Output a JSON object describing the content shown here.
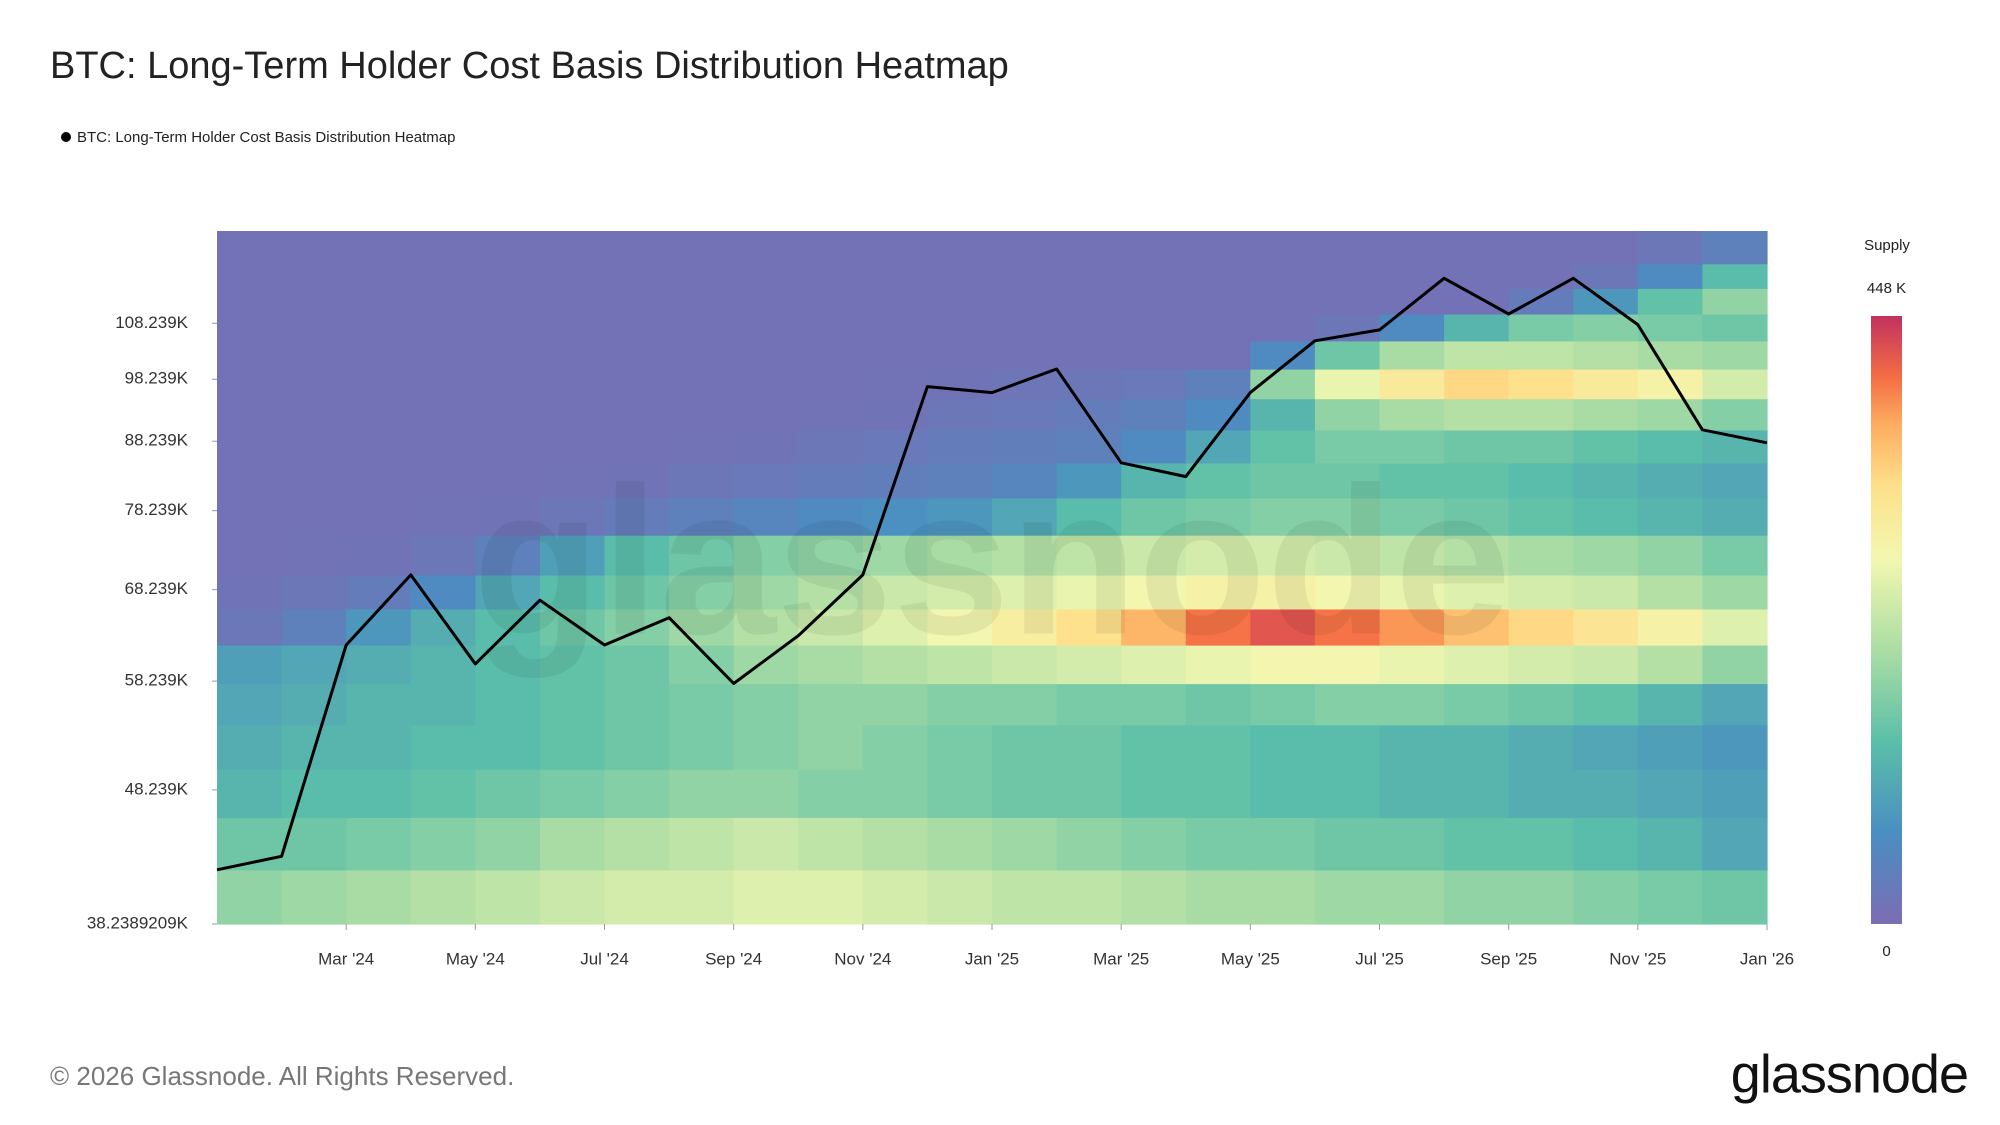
{
  "chart_data": {
    "type": "heatmap",
    "title": "BTC: Long-Term Holder Cost Basis Distribution Heatmap",
    "yscale": "log",
    "ylim": [
      38238.9209,
      127000
    ],
    "yticks": [
      {
        "value": 108239,
        "label": "108.239K"
      },
      {
        "value": 98239,
        "label": "98.239K"
      },
      {
        "value": 88239,
        "label": "88.239K"
      },
      {
        "value": 78239,
        "label": "78.239K"
      },
      {
        "value": 68239,
        "label": "68.239K"
      },
      {
        "value": 58239,
        "label": "58.239K"
      },
      {
        "value": 48239,
        "label": "48.239K"
      },
      {
        "value": 38238.9209,
        "label": "38.2389209K"
      }
    ],
    "xlim": [
      "2024-01",
      "2026-01"
    ],
    "xticks": [
      {
        "value": "2024-03",
        "label": "Mar '24"
      },
      {
        "value": "2024-05",
        "label": "May '24"
      },
      {
        "value": "2024-07",
        "label": "Jul '24"
      },
      {
        "value": "2024-09",
        "label": "Sep '24"
      },
      {
        "value": "2024-11",
        "label": "Nov '24"
      },
      {
        "value": "2025-01",
        "label": "Jan '25"
      },
      {
        "value": "2025-03",
        "label": "Mar '25"
      },
      {
        "value": "2025-05",
        "label": "May '25"
      },
      {
        "value": "2025-07",
        "label": "Jul '25"
      },
      {
        "value": "2025-09",
        "label": "Sep '25"
      },
      {
        "value": "2025-11",
        "label": "Nov '25"
      },
      {
        "value": "2026-01",
        "label": "Jan '26"
      }
    ],
    "x": [
      "2024-01",
      "2024-02",
      "2024-03",
      "2024-04",
      "2024-05",
      "2024-06",
      "2024-07",
      "2024-08",
      "2024-09",
      "2024-10",
      "2024-11",
      "2024-12",
      "2025-01",
      "2025-02",
      "2025-03",
      "2025-04",
      "2025-05",
      "2025-06",
      "2025-07",
      "2025-08",
      "2025-09",
      "2025-10",
      "2025-11",
      "2025-12",
      "2026-01"
    ],
    "series": [
      {
        "name": "BTC: Long-Term Holder Cost Basis Distribution Heatmap",
        "color": "#000000",
        "values": [
          42000,
          43000,
          62000,
          70000,
          60000,
          67000,
          62000,
          65000,
          58000,
          63000,
          70000,
          97000,
          96000,
          100000,
          85000,
          83000,
          96000,
          105000,
          107000,
          117000,
          110000,
          117000,
          108000,
          90000,
          88000
        ]
      }
    ],
    "heatmap": {
      "columns": [
        "2024-01",
        "2024-02",
        "2024-03",
        "2024-04",
        "2024-05",
        "2024-06",
        "2024-07",
        "2024-08",
        "2024-09",
        "2024-10",
        "2024-11",
        "2024-12",
        "2025-01",
        "2025-02",
        "2025-03",
        "2025-04",
        "2025-05",
        "2025-06",
        "2025-07",
        "2025-08",
        "2025-09",
        "2025-10",
        "2025-11",
        "2025-12"
      ],
      "bins": [
        38239,
        42000,
        46000,
        50000,
        54000,
        58000,
        62000,
        66000,
        70000,
        75000,
        80000,
        85000,
        90000,
        95000,
        100000,
        105000,
        110000,
        115000,
        120000,
        127000
      ],
      "z": [
        [
          180,
          190,
          200,
          210,
          220,
          230,
          240,
          240,
          250,
          250,
          240,
          230,
          220,
          220,
          210,
          200,
          200,
          190,
          190,
          180,
          180,
          170,
          160,
          150
        ],
        [
          150,
          150,
          160,
          170,
          180,
          200,
          210,
          220,
          230,
          220,
          210,
          200,
          190,
          180,
          170,
          160,
          160,
          150,
          150,
          140,
          140,
          130,
          120,
          100
        ],
        [
          120,
          130,
          130,
          140,
          150,
          160,
          170,
          180,
          180,
          170,
          170,
          160,
          150,
          150,
          140,
          140,
          130,
          130,
          120,
          120,
          110,
          110,
          100,
          90
        ],
        [
          110,
          120,
          120,
          130,
          130,
          140,
          150,
          160,
          170,
          180,
          170,
          160,
          150,
          150,
          140,
          140,
          130,
          130,
          120,
          120,
          110,
          100,
          90,
          80
        ],
        [
          100,
          110,
          120,
          120,
          130,
          140,
          150,
          160,
          170,
          180,
          180,
          170,
          170,
          160,
          160,
          150,
          160,
          170,
          170,
          160,
          150,
          140,
          120,
          100
        ],
        [
          90,
          100,
          110,
          120,
          130,
          140,
          150,
          170,
          190,
          200,
          210,
          220,
          230,
          240,
          250,
          260,
          270,
          270,
          260,
          250,
          240,
          230,
          210,
          180
        ],
        [
          20,
          40,
          80,
          110,
          130,
          150,
          170,
          190,
          210,
          230,
          250,
          270,
          290,
          320,
          360,
          400,
          420,
          400,
          380,
          350,
          330,
          310,
          280,
          250
        ],
        [
          15,
          20,
          30,
          60,
          100,
          130,
          150,
          170,
          190,
          210,
          230,
          240,
          250,
          260,
          270,
          280,
          280,
          270,
          260,
          250,
          240,
          230,
          210,
          190
        ],
        [
          10,
          12,
          15,
          20,
          40,
          90,
          130,
          150,
          170,
          180,
          190,
          200,
          210,
          220,
          230,
          240,
          240,
          230,
          220,
          210,
          200,
          190,
          180,
          160
        ],
        [
          10,
          10,
          10,
          12,
          15,
          20,
          30,
          40,
          50,
          60,
          70,
          80,
          100,
          130,
          150,
          160,
          170,
          170,
          160,
          150,
          140,
          130,
          120,
          110
        ],
        [
          10,
          10,
          10,
          10,
          10,
          12,
          15,
          20,
          25,
          30,
          35,
          40,
          50,
          80,
          120,
          140,
          150,
          150,
          140,
          140,
          130,
          120,
          110,
          100
        ],
        [
          10,
          10,
          10,
          10,
          10,
          10,
          10,
          12,
          15,
          20,
          25,
          30,
          35,
          40,
          60,
          100,
          140,
          160,
          160,
          150,
          150,
          140,
          130,
          120
        ],
        [
          10,
          10,
          10,
          10,
          10,
          10,
          10,
          10,
          10,
          12,
          15,
          20,
          25,
          30,
          40,
          60,
          120,
          180,
          200,
          210,
          210,
          200,
          190,
          170
        ],
        [
          10,
          10,
          10,
          10,
          10,
          10,
          10,
          10,
          10,
          10,
          12,
          15,
          18,
          20,
          25,
          40,
          180,
          260,
          300,
          330,
          320,
          300,
          280,
          240
        ],
        [
          10,
          10,
          10,
          10,
          10,
          10,
          10,
          10,
          10,
          10,
          10,
          10,
          10,
          10,
          10,
          10,
          60,
          150,
          200,
          220,
          220,
          210,
          200,
          190
        ],
        [
          10,
          10,
          10,
          10,
          10,
          10,
          10,
          10,
          10,
          10,
          10,
          10,
          10,
          10,
          10,
          10,
          10,
          20,
          60,
          120,
          160,
          170,
          160,
          150
        ],
        [
          10,
          10,
          10,
          10,
          10,
          10,
          10,
          10,
          10,
          10,
          10,
          10,
          10,
          10,
          10,
          10,
          10,
          10,
          10,
          10,
          30,
          80,
          140,
          180
        ],
        [
          10,
          10,
          10,
          10,
          10,
          10,
          10,
          10,
          10,
          10,
          10,
          10,
          10,
          10,
          10,
          10,
          10,
          10,
          10,
          10,
          10,
          20,
          60,
          130
        ],
        [
          10,
          10,
          10,
          10,
          10,
          10,
          10,
          10,
          10,
          10,
          10,
          10,
          10,
          10,
          10,
          10,
          10,
          10,
          10,
          10,
          10,
          10,
          20,
          40
        ]
      ],
      "zlim": [
        0,
        448
      ],
      "colorbar_title": "Supply",
      "zticks": [
        {
          "value": 448,
          "label": "448 K"
        },
        0
      ],
      "colorscale": [
        [
          0,
          "#7b6db4"
        ],
        [
          0.15,
          "#4a8ec2"
        ],
        [
          0.3,
          "#5bbfa8"
        ],
        [
          0.45,
          "#abdda4"
        ],
        [
          0.6,
          "#f2f7b0"
        ],
        [
          0.72,
          "#fee08b"
        ],
        [
          0.82,
          "#fdae61"
        ],
        [
          0.9,
          "#f46d43"
        ],
        [
          1,
          "#c2305f"
        ]
      ]
    }
  },
  "watermark": "glassnode",
  "footer": {
    "copyright": "© 2026 Glassnode. All Rights Reserved.",
    "logo": "glassnode"
  }
}
